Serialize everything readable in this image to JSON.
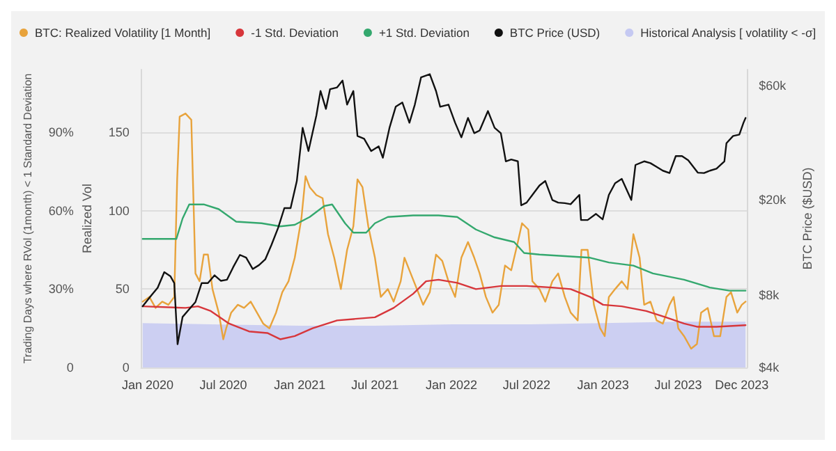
{
  "chart_data": {
    "type": "line",
    "ylabel": "Realized Vol",
    "y2label": "BTC Price ($USD)",
    "y3label": "Trading Days where RVol (1month) < 1 Standard Deviation",
    "xlim": [
      "2019-12-15",
      "2023-12-15"
    ],
    "xticks": [
      {
        "value": "2020-01-01",
        "label": "Jan 2020"
      },
      {
        "value": "2020-07-01",
        "label": "Jul 2020"
      },
      {
        "value": "2021-01-01",
        "label": "Jan 2021"
      },
      {
        "value": "2021-07-01",
        "label": "Jul 2021"
      },
      {
        "value": "2022-01-01",
        "label": "Jan 2022"
      },
      {
        "value": "2022-07-01",
        "label": "Jul 2022"
      },
      {
        "value": "2023-01-01",
        "label": "Jan 2023"
      },
      {
        "value": "2023-07-01",
        "label": "Jul 2023"
      },
      {
        "value": "2023-12-01",
        "label": "Dec 2023"
      }
    ],
    "ylim": [
      0,
      190
    ],
    "yticks": [
      0,
      50,
      100,
      150
    ],
    "y2lim": [
      4000,
      70000
    ],
    "y2ticks": [
      {
        "value": 4000,
        "label": "$4k"
      },
      {
        "value": 8000,
        "label": "$8k"
      },
      {
        "value": 20000,
        "label": "$20k"
      },
      {
        "value": 60000,
        "label": "$60k"
      }
    ],
    "y3lim": [
      0,
      114
    ],
    "y3ticks": [
      0,
      {
        "value": 30,
        "label": "30%"
      },
      {
        "value": 60,
        "label": "60%"
      },
      {
        "value": 90,
        "label": "90%"
      }
    ],
    "log": "y2",
    "grid": "y",
    "legend": "top",
    "marker": "none",
    "series": [
      {
        "name": "Historical Analysis [ volatility < -σ]",
        "type": "area",
        "axis": "y3",
        "color": "#c5c9f2",
        "x": [
          "2019-12-20",
          "2020-06-01",
          "2021-01-01",
          "2021-07-01",
          "2022-01-01",
          "2022-07-01",
          "2023-01-01",
          "2023-07-01",
          "2023-12-10"
        ],
        "values": [
          17,
          16.5,
          16,
          16,
          16.5,
          16.5,
          17,
          17.5,
          17.5
        ]
      },
      {
        "name": "BTC: Realized Volatility [1 Month]",
        "color": "#e8a33c",
        "x": [
          "2019-12-20",
          "2020-01-05",
          "2020-01-20",
          "2020-02-05",
          "2020-02-20",
          "2020-03-05",
          "2020-03-12",
          "2020-03-18",
          "2020-04-01",
          "2020-04-15",
          "2020-04-25",
          "2020-05-05",
          "2020-05-15",
          "2020-05-25",
          "2020-06-05",
          "2020-06-20",
          "2020-07-01",
          "2020-07-08",
          "2020-07-20",
          "2020-08-05",
          "2020-08-20",
          "2020-09-05",
          "2020-09-20",
          "2020-10-05",
          "2020-10-20",
          "2020-11-05",
          "2020-11-20",
          "2020-12-05",
          "2020-12-20",
          "2021-01-05",
          "2021-01-15",
          "2021-01-25",
          "2021-02-10",
          "2021-02-25",
          "2021-03-10",
          "2021-03-25",
          "2021-04-10",
          "2021-04-25",
          "2021-05-10",
          "2021-05-20",
          "2021-06-01",
          "2021-06-15",
          "2021-07-01",
          "2021-07-15",
          "2021-08-01",
          "2021-08-15",
          "2021-09-01",
          "2021-09-10",
          "2021-09-25",
          "2021-10-10",
          "2021-10-25",
          "2021-11-10",
          "2021-11-25",
          "2021-12-10",
          "2021-12-25",
          "2022-01-10",
          "2022-01-25",
          "2022-02-10",
          "2022-02-25",
          "2022-03-10",
          "2022-03-25",
          "2022-04-10",
          "2022-04-25",
          "2022-05-10",
          "2022-05-25",
          "2022-06-10",
          "2022-06-20",
          "2022-07-05",
          "2022-07-15",
          "2022-08-01",
          "2022-08-15",
          "2022-09-01",
          "2022-09-15",
          "2022-10-01",
          "2022-10-15",
          "2022-11-01",
          "2022-11-10",
          "2022-11-25",
          "2022-12-10",
          "2022-12-25",
          "2023-01-05",
          "2023-01-15",
          "2023-01-30",
          "2023-02-15",
          "2023-03-01",
          "2023-03-15",
          "2023-03-30",
          "2023-04-10",
          "2023-04-25",
          "2023-05-10",
          "2023-05-25",
          "2023-06-10",
          "2023-06-20",
          "2023-07-01",
          "2023-07-15",
          "2023-08-01",
          "2023-08-15",
          "2023-08-25",
          "2023-09-10",
          "2023-09-25",
          "2023-10-10",
          "2023-10-25",
          "2023-11-05",
          "2023-11-20",
          "2023-12-01",
          "2023-12-10"
        ],
        "values": [
          42,
          45,
          38,
          42,
          40,
          45,
          120,
          160,
          162,
          158,
          60,
          55,
          72,
          72,
          50,
          35,
          18,
          25,
          35,
          40,
          38,
          42,
          35,
          28,
          25,
          35,
          48,
          55,
          70,
          95,
          122,
          115,
          110,
          108,
          85,
          70,
          50,
          75,
          90,
          120,
          115,
          90,
          70,
          45,
          50,
          42,
          55,
          70,
          60,
          50,
          40,
          48,
          72,
          68,
          55,
          45,
          70,
          80,
          70,
          60,
          45,
          35,
          40,
          65,
          62,
          80,
          92,
          88,
          55,
          50,
          42,
          55,
          60,
          45,
          35,
          30,
          75,
          75,
          40,
          25,
          20,
          45,
          50,
          55,
          50,
          85,
          70,
          40,
          42,
          30,
          28,
          40,
          45,
          25,
          20,
          12,
          15,
          35,
          38,
          20,
          20,
          45,
          48,
          35,
          40,
          42
        ]
      },
      {
        "name": "-1 Std. Deviation",
        "color": "#d7363b",
        "x": [
          "2019-12-20",
          "2020-04-01",
          "2020-05-01",
          "2020-06-01",
          "2020-07-15",
          "2020-09-01",
          "2020-10-15",
          "2020-11-15",
          "2020-12-20",
          "2021-02-01",
          "2021-04-01",
          "2021-05-15",
          "2021-07-01",
          "2021-08-15",
          "2021-10-01",
          "2021-11-01",
          "2021-12-01",
          "2022-01-15",
          "2022-03-01",
          "2022-05-01",
          "2022-07-01",
          "2022-09-01",
          "2022-10-15",
          "2022-12-01",
          "2023-01-01",
          "2023-02-15",
          "2023-04-15",
          "2023-06-01",
          "2023-07-15",
          "2023-08-15",
          "2023-10-01",
          "2023-12-10"
        ],
        "values": [
          39,
          38,
          39,
          36,
          28,
          23,
          22,
          18,
          20,
          25,
          30,
          31,
          32,
          38,
          47,
          55,
          56,
          54,
          50,
          52,
          52,
          51,
          50,
          45,
          40,
          39,
          36,
          32,
          28,
          26,
          26,
          27
        ]
      },
      {
        "name": "+1 Std. Deviation",
        "color": "#34a86e",
        "x": [
          "2019-12-20",
          "2020-03-10",
          "2020-03-25",
          "2020-04-10",
          "2020-05-15",
          "2020-06-20",
          "2020-08-01",
          "2020-10-01",
          "2020-11-15",
          "2020-12-20",
          "2021-01-25",
          "2021-03-01",
          "2021-03-20",
          "2021-04-20",
          "2021-05-10",
          "2021-06-10",
          "2021-07-01",
          "2021-08-01",
          "2021-10-01",
          "2021-12-01",
          "2022-01-15",
          "2022-03-01",
          "2022-04-15",
          "2022-06-01",
          "2022-06-25",
          "2022-08-01",
          "2022-10-01",
          "2022-12-01",
          "2023-01-15",
          "2023-03-15",
          "2023-05-01",
          "2023-07-15",
          "2023-09-15",
          "2023-11-01",
          "2023-12-10"
        ],
        "values": [
          82,
          82,
          95,
          104,
          104,
          101,
          93,
          92,
          90,
          91,
          96,
          103,
          104,
          92,
          86,
          86,
          92,
          96,
          97,
          97,
          96,
          88,
          83,
          80,
          73,
          72,
          71,
          70,
          67,
          65,
          60,
          56,
          51,
          49,
          49
        ]
      },
      {
        "name": "BTC Price (USD)",
        "axis": "y2",
        "color": "#111111",
        "x": [
          "2019-12-20",
          "2020-01-10",
          "2020-01-25",
          "2020-02-10",
          "2020-02-25",
          "2020-03-05",
          "2020-03-13",
          "2020-03-25",
          "2020-04-10",
          "2020-04-25",
          "2020-05-10",
          "2020-05-25",
          "2020-06-10",
          "2020-06-25",
          "2020-07-10",
          "2020-07-25",
          "2020-08-10",
          "2020-08-25",
          "2020-09-10",
          "2020-09-25",
          "2020-10-10",
          "2020-10-25",
          "2020-11-10",
          "2020-11-25",
          "2020-12-10",
          "2020-12-25",
          "2021-01-08",
          "2021-01-22",
          "2021-02-10",
          "2021-02-20",
          "2021-03-05",
          "2021-03-15",
          "2021-04-01",
          "2021-04-14",
          "2021-04-25",
          "2021-05-10",
          "2021-05-20",
          "2021-06-05",
          "2021-06-22",
          "2021-07-10",
          "2021-07-20",
          "2021-08-05",
          "2021-08-20",
          "2021-09-05",
          "2021-09-22",
          "2021-10-05",
          "2021-10-20",
          "2021-11-10",
          "2021-11-25",
          "2021-12-05",
          "2021-12-25",
          "2022-01-10",
          "2022-01-25",
          "2022-02-10",
          "2022-02-25",
          "2022-03-10",
          "2022-03-30",
          "2022-04-15",
          "2022-04-30",
          "2022-05-12",
          "2022-05-25",
          "2022-06-10",
          "2022-06-18",
          "2022-07-01",
          "2022-07-15",
          "2022-08-01",
          "2022-08-15",
          "2022-09-01",
          "2022-09-15",
          "2022-10-01",
          "2022-10-15",
          "2022-11-05",
          "2022-11-09",
          "2022-11-25",
          "2022-12-15",
          "2022-12-31",
          "2023-01-15",
          "2023-01-30",
          "2023-02-15",
          "2023-03-10",
          "2023-03-20",
          "2023-04-10",
          "2023-04-25",
          "2023-05-10",
          "2023-05-25",
          "2023-06-10",
          "2023-06-25",
          "2023-07-10",
          "2023-07-25",
          "2023-08-17",
          "2023-09-01",
          "2023-09-15",
          "2023-10-01",
          "2023-10-20",
          "2023-10-25",
          "2023-11-10",
          "2023-11-25",
          "2023-12-05",
          "2023-12-10"
        ],
        "values": [
          7200,
          8000,
          8600,
          10000,
          9600,
          9000,
          5000,
          6500,
          7000,
          7500,
          9000,
          9000,
          9700,
          9200,
          9300,
          10500,
          11800,
          11500,
          10300,
          10700,
          11300,
          13000,
          15300,
          18500,
          18500,
          24000,
          40000,
          32000,
          45000,
          57000,
          48000,
          58000,
          59000,
          63000,
          50000,
          57000,
          37000,
          36000,
          32000,
          33500,
          30000,
          40000,
          49000,
          51000,
          42000,
          50000,
          65000,
          67000,
          57000,
          49000,
          50000,
          42000,
          36500,
          44000,
          38000,
          39000,
          47000,
          40000,
          38000,
          29000,
          29500,
          29000,
          19000,
          19500,
          21000,
          23000,
          24000,
          20000,
          19500,
          19400,
          19200,
          21000,
          16500,
          16500,
          17500,
          16600,
          21000,
          23500,
          24500,
          20000,
          28000,
          29000,
          28500,
          27500,
          26500,
          25900,
          30500,
          30500,
          29300,
          26000,
          25900,
          26500,
          27000,
          29000,
          34500,
          37000,
          37500,
          42000,
          44000
        ]
      }
    ]
  }
}
